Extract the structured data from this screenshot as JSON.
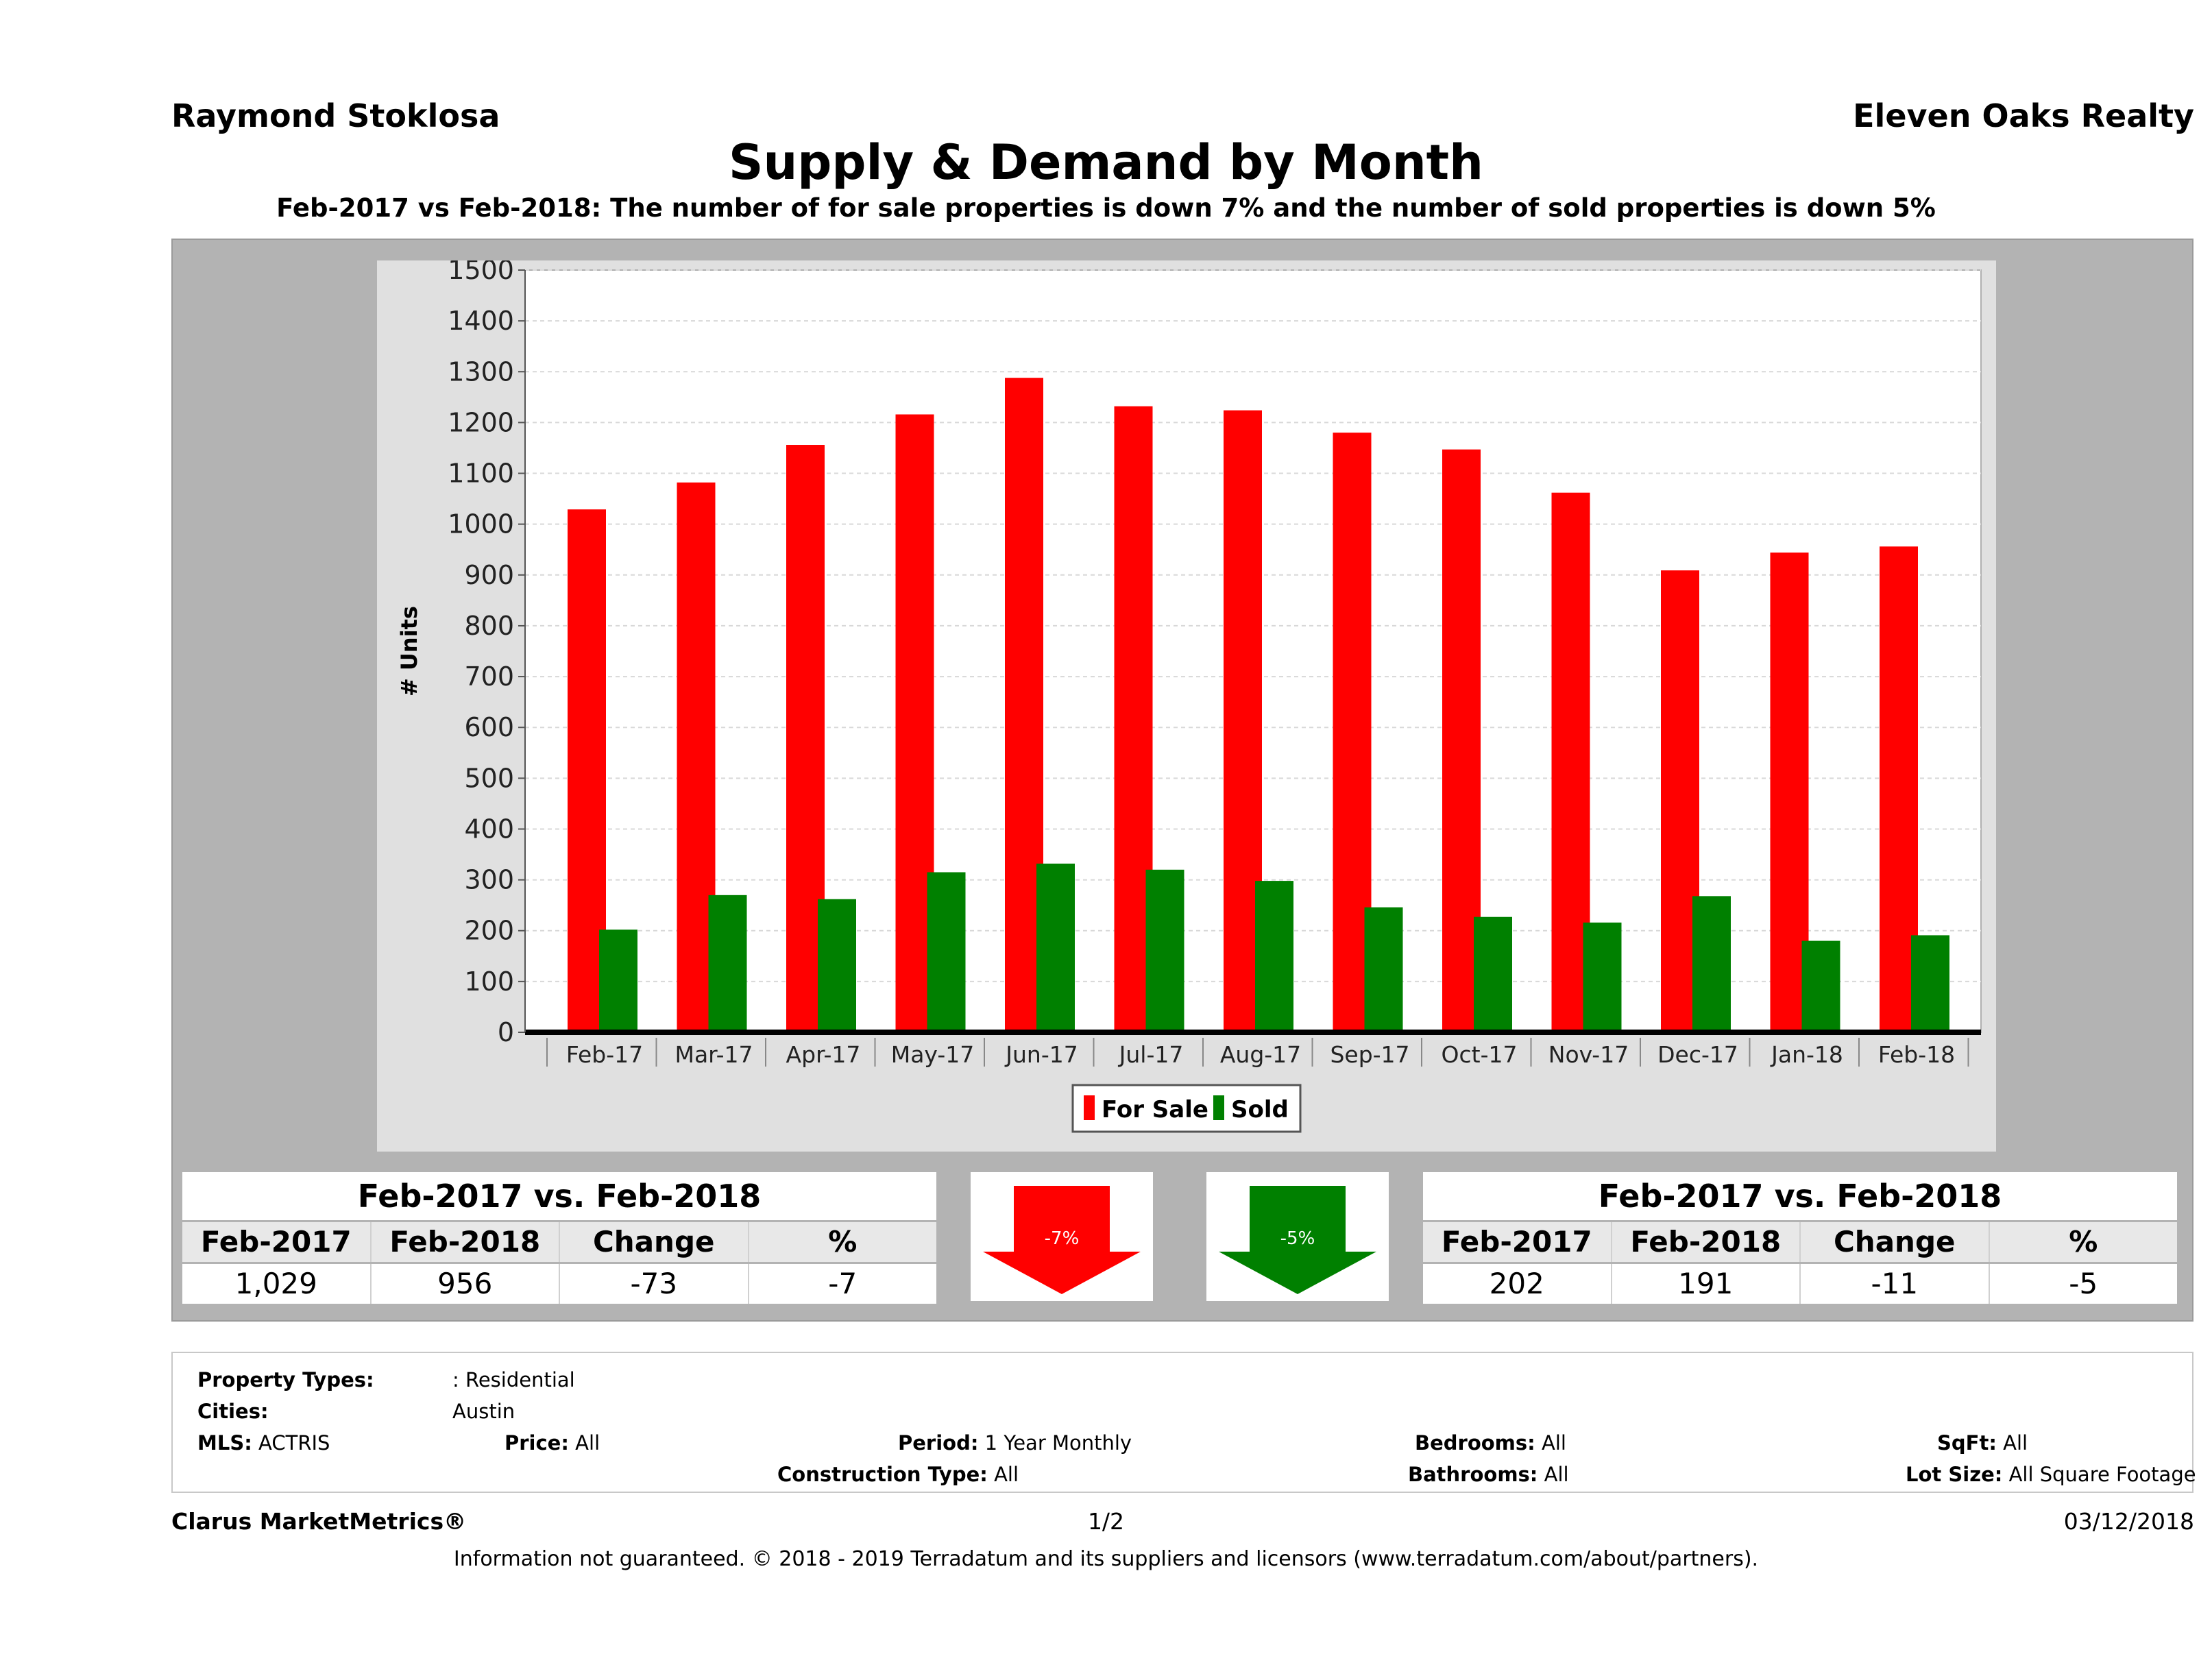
{
  "header": {
    "agent": "Raymond Stoklosa",
    "company": "Eleven Oaks Realty",
    "title": "Supply & Demand by Month",
    "subtitle": "Feb-2017 vs Feb-2018: The number of for sale properties is down 7% and the number of sold properties is down 5%"
  },
  "chart_data": {
    "type": "bar",
    "categories": [
      "Feb-17",
      "Mar-17",
      "Apr-17",
      "May-17",
      "Jun-17",
      "Jul-17",
      "Aug-17",
      "Sep-17",
      "Oct-17",
      "Nov-17",
      "Dec-17",
      "Jan-18",
      "Feb-18"
    ],
    "series": [
      {
        "name": "For Sale",
        "color": "#ff0000",
        "values": [
          1029,
          1082,
          1156,
          1216,
          1288,
          1232,
          1224,
          1180,
          1147,
          1062,
          909,
          944,
          956
        ]
      },
      {
        "name": "Sold",
        "color": "#008000",
        "values": [
          202,
          270,
          262,
          315,
          332,
          320,
          298,
          246,
          227,
          216,
          268,
          180,
          191
        ]
      }
    ],
    "ylabel": "# Units",
    "ylim": [
      0,
      1500
    ],
    "yticks": [
      0,
      100,
      200,
      300,
      400,
      500,
      600,
      700,
      800,
      900,
      1000,
      1100,
      1200,
      1300,
      1400,
      1500
    ],
    "grid": true,
    "legend": "bottom-center"
  },
  "comparison_left": {
    "heading": "Feb-2017 vs. Feb-2018",
    "labels": [
      "Feb-2017",
      "Feb-2018",
      "Change",
      "%"
    ],
    "values": [
      "1,029",
      "956",
      "-73",
      "-7"
    ]
  },
  "comparison_right": {
    "heading": "Feb-2017 vs. Feb-2018",
    "labels": [
      "Feb-2017",
      "Feb-2018",
      "Change",
      "%"
    ],
    "values": [
      "202",
      "191",
      "-11",
      "-5"
    ]
  },
  "arrows": {
    "for_sale_change": "-7%",
    "sold_change": "-5%",
    "for_sale_color": "#ff0000",
    "sold_color": "#008000"
  },
  "filters": {
    "property_types_label": "Property Types:",
    "property_types_value": ": Residential",
    "cities_label": "Cities:",
    "cities_value": "Austin",
    "mls_label": "MLS:",
    "mls_value": "ACTRIS",
    "price_label": "Price:",
    "price_value": "All",
    "period_label": "Period:",
    "period_value": "1 Year Monthly",
    "construction_label": "Construction Type:",
    "construction_value": "All",
    "bedrooms_label": "Bedrooms:",
    "bedrooms_value": "All",
    "bathrooms_label": "Bathrooms:",
    "bathrooms_value": "All",
    "sqft_label": "SqFt:",
    "sqft_value": "All",
    "lotsize_label": "Lot Size:",
    "lotsize_value": "All Square Footage"
  },
  "footer": {
    "brand": "Clarus MarketMetrics®",
    "page": "1/2",
    "date": "03/12/2018",
    "disclaimer": "Information not guaranteed. © 2018 - 2019 Terradatum and its suppliers and licensors (www.terradatum.com/about/partners)."
  }
}
